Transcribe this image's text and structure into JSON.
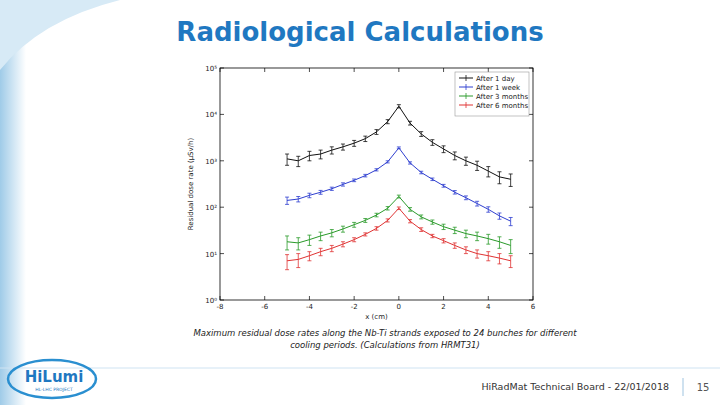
{
  "slide": {
    "title": "Radiological Calculations",
    "caption_lines": [
      "Maximum residual dose rates along the Nb-Ti strands exposed to 24 bunches for different",
      "cooling periods. (Calculations from HRMT31)"
    ],
    "footer": "HiRadMat Technical Board - 22/01/2018",
    "page_number": "15",
    "logo": {
      "name": "HiLumi",
      "subtitle": "HL-LHC PROJECT"
    }
  },
  "chart_data": {
    "type": "line",
    "x_label": "x (cm)",
    "y_label": "Residual dose rate (μSv/h)",
    "log": "y",
    "legend": "upper right",
    "grid": false,
    "marker": "none",
    "line_style": "solid",
    "xlim": [
      -8,
      6
    ],
    "xticks": [
      -8,
      -6,
      -4,
      -2,
      0,
      2,
      4,
      6
    ],
    "ylim": [
      1,
      100000
    ],
    "yticks": [
      {
        "value": 1,
        "label": "10⁰"
      },
      {
        "value": 10,
        "label": "10¹"
      },
      {
        "value": 100,
        "label": "10²"
      },
      {
        "value": 1000,
        "label": "10³"
      },
      {
        "value": 10000,
        "label": "10⁴"
      },
      {
        "value": 100000,
        "label": "10⁵"
      }
    ],
    "x": [
      -5,
      -4.5,
      -4,
      -3.5,
      -3,
      -2.5,
      -2,
      -1.5,
      -1,
      -0.5,
      0,
      0.5,
      1,
      1.5,
      2,
      2.5,
      3,
      3.5,
      4,
      4.5,
      5
    ],
    "series": [
      {
        "name": "After 1 day",
        "color": "#111111",
        "values": [
          1100,
          1000,
          1300,
          1400,
          1700,
          2000,
          2400,
          3000,
          4200,
          7000,
          15000,
          6500,
          3800,
          2500,
          1800,
          1300,
          1000,
          800,
          600,
          450,
          400
        ],
        "errors": [
          300,
          250,
          300,
          300,
          300,
          300,
          350,
          400,
          500,
          700,
          1200,
          600,
          450,
          350,
          300,
          250,
          200,
          180,
          150,
          130,
          120
        ]
      },
      {
        "name": "After 1 week",
        "color": "#2f3fd0",
        "values": [
          140,
          150,
          180,
          210,
          250,
          310,
          380,
          480,
          640,
          950,
          1900,
          900,
          560,
          400,
          290,
          210,
          160,
          120,
          90,
          65,
          50
        ],
        "errors": [
          25,
          20,
          20,
          20,
          20,
          25,
          25,
          30,
          35,
          50,
          90,
          50,
          35,
          25,
          20,
          18,
          15,
          14,
          12,
          10,
          10
        ]
      },
      {
        "name": "After 3 months",
        "color": "#2a9a2a",
        "values": [
          18,
          17,
          20,
          24,
          28,
          34,
          42,
          52,
          68,
          95,
          170,
          90,
          62,
          48,
          38,
          32,
          27,
          24,
          21,
          18,
          15
        ],
        "errors": [
          6,
          5,
          5,
          5,
          5,
          5,
          5,
          5,
          6,
          8,
          12,
          8,
          6,
          5,
          5,
          5,
          5,
          5,
          5,
          5,
          5
        ]
      },
      {
        "name": "After 6 months",
        "color": "#e03333",
        "values": [
          7,
          7.5,
          9,
          11,
          13,
          16,
          20,
          26,
          35,
          52,
          95,
          50,
          33,
          24,
          19,
          15,
          12,
          10,
          9,
          8,
          7
        ],
        "errors": [
          2.5,
          2.5,
          2,
          2,
          2,
          2,
          2,
          2,
          3,
          4,
          6,
          4,
          3,
          2,
          2,
          2,
          2,
          2,
          2,
          2,
          2
        ]
      }
    ]
  }
}
